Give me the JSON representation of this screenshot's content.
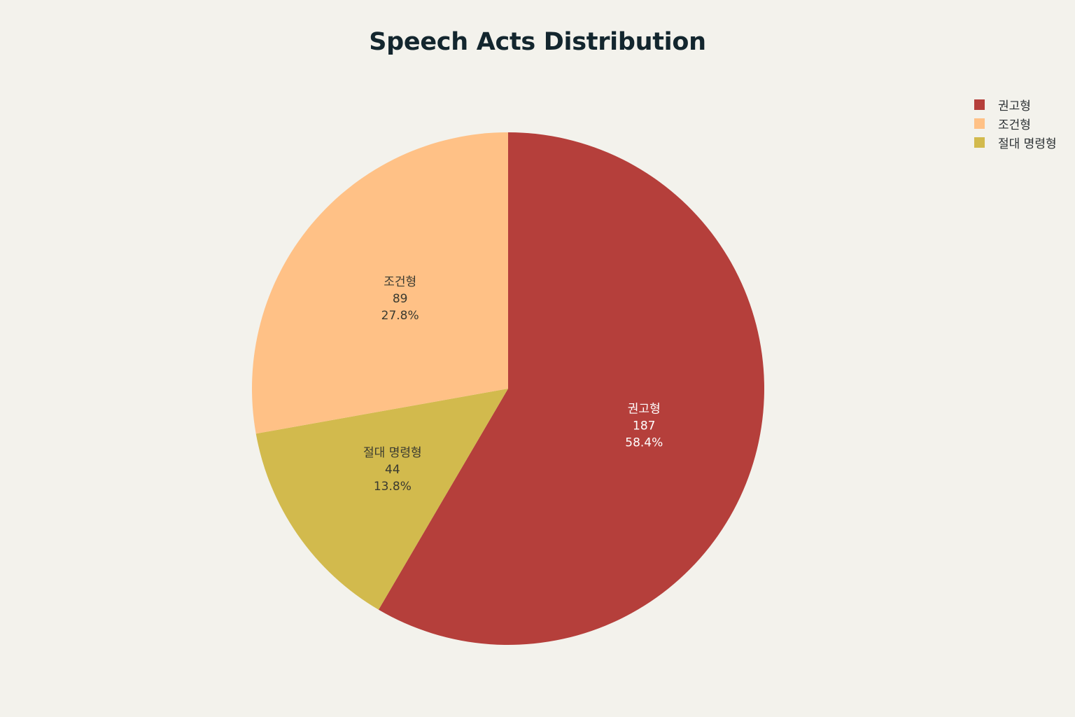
{
  "chart_data": {
    "type": "pie",
    "title": "Speech Acts Distribution",
    "legend_position": "top-right",
    "slices": [
      {
        "label": "권고형",
        "value": 187,
        "percent": "58.4%",
        "color": "#b53f3b",
        "text_color": "#ffffff"
      },
      {
        "label": "절대 명령형",
        "value": 44,
        "percent": "13.8%",
        "color": "#d2ba4d",
        "text_color": "#3a3a30"
      },
      {
        "label": "조건형",
        "value": 89,
        "percent": "27.8%",
        "color": "#ffc186",
        "text_color": "#3a3a30"
      }
    ],
    "legend": [
      {
        "label": "권고형",
        "color": "#b53f3b"
      },
      {
        "label": "조건형",
        "color": "#ffc186"
      },
      {
        "label": "절대 명령형",
        "color": "#d2ba4d"
      }
    ]
  }
}
